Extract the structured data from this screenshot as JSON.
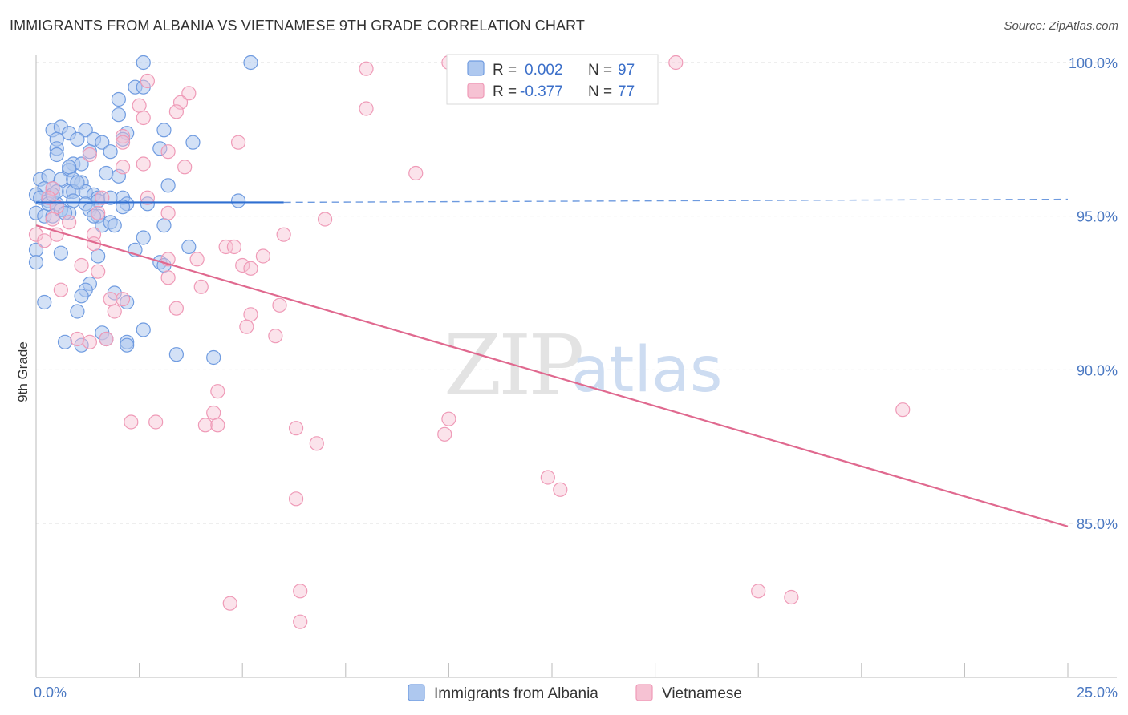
{
  "title": "IMMIGRANTS FROM ALBANIA VS VIETNAMESE 9TH GRADE CORRELATION CHART",
  "source": "Source: ZipAtlas.com",
  "watermark": {
    "zip": "ZIP",
    "atlas": "atlas"
  },
  "colors": {
    "blue_fill": "#aec8ef",
    "blue_stroke": "#6f9be0",
    "blue_line": "#2f6fd1",
    "pink_fill": "#f6c2d3",
    "pink_stroke": "#ef9ab7",
    "pink_line": "#e0698f",
    "grid": "#dddddd",
    "axis_label": "#4a78c2"
  },
  "legend": {
    "rows": [
      {
        "r_label": "R =",
        "r_value": "0.002",
        "n_label": "N =",
        "n_value": "97"
      },
      {
        "r_label": "R =",
        "r_value": "-0.377",
        "n_label": "N =",
        "n_value": "77"
      }
    ]
  },
  "bottom_legend": [
    "Immigrants from Albania",
    "Vietnamese"
  ],
  "chart_data": {
    "type": "scatter",
    "title": "IMMIGRANTS FROM ALBANIA VS VIETNAMESE 9TH GRADE CORRELATION CHART",
    "xlabel": "",
    "ylabel": "9th Grade",
    "xlim": [
      0,
      25
    ],
    "ylim": [
      80.1,
      100.5
    ],
    "x_tick_labels": [
      "0.0%",
      "25.0%"
    ],
    "y_ticks": [
      85,
      90,
      95,
      100
    ],
    "y_tick_labels": [
      "85.0%",
      "90.0%",
      "95.0%",
      "100.0%"
    ],
    "grid": true,
    "legend_position": "top-center",
    "series": [
      {
        "name": "Immigrants from Albania",
        "r": 0.002,
        "n": 97,
        "trend": {
          "x": [
            0,
            6.0
          ],
          "y": [
            95.45,
            95.45
          ],
          "dashed_to": [
            25,
            95.55
          ]
        },
        "points": [
          [
            2.6,
            100.0
          ],
          [
            5.2,
            100.0
          ],
          [
            2.4,
            99.2
          ],
          [
            2.6,
            99.2
          ],
          [
            2.0,
            98.8
          ],
          [
            2.0,
            98.3
          ],
          [
            0.4,
            97.8
          ],
          [
            0.6,
            97.9
          ],
          [
            1.2,
            97.8
          ],
          [
            0.8,
            97.7
          ],
          [
            2.2,
            97.7
          ],
          [
            3.1,
            97.8
          ],
          [
            0.5,
            97.5
          ],
          [
            1.0,
            97.5
          ],
          [
            1.4,
            97.5
          ],
          [
            1.6,
            97.4
          ],
          [
            2.1,
            97.5
          ],
          [
            3.8,
            97.4
          ],
          [
            0.5,
            97.2
          ],
          [
            1.3,
            97.1
          ],
          [
            1.8,
            97.1
          ],
          [
            3.0,
            97.2
          ],
          [
            0.5,
            97.0
          ],
          [
            0.9,
            96.7
          ],
          [
            1.1,
            96.7
          ],
          [
            0.8,
            96.5
          ],
          [
            0.1,
            96.2
          ],
          [
            0.3,
            96.3
          ],
          [
            0.6,
            96.2
          ],
          [
            0.9,
            96.2
          ],
          [
            1.1,
            96.1
          ],
          [
            1.7,
            96.4
          ],
          [
            2.0,
            96.3
          ],
          [
            0.2,
            95.9
          ],
          [
            0.4,
            95.9
          ],
          [
            0.5,
            95.8
          ],
          [
            0.8,
            95.8
          ],
          [
            0.9,
            95.8
          ],
          [
            1.2,
            95.8
          ],
          [
            1.4,
            95.7
          ],
          [
            1.5,
            95.6
          ],
          [
            1.8,
            95.6
          ],
          [
            2.1,
            95.6
          ],
          [
            3.2,
            96.0
          ],
          [
            0.0,
            95.7
          ],
          [
            0.1,
            95.6
          ],
          [
            0.3,
            95.5
          ],
          [
            0.5,
            95.4
          ],
          [
            0.9,
            95.5
          ],
          [
            1.2,
            95.4
          ],
          [
            1.5,
            95.5
          ],
          [
            2.2,
            95.4
          ],
          [
            2.7,
            95.4
          ],
          [
            0.0,
            95.1
          ],
          [
            0.2,
            95.0
          ],
          [
            0.4,
            95.0
          ],
          [
            0.8,
            95.1
          ],
          [
            1.3,
            95.2
          ],
          [
            1.5,
            95.0
          ],
          [
            1.6,
            94.7
          ],
          [
            1.8,
            94.8
          ],
          [
            1.9,
            94.7
          ],
          [
            3.1,
            94.7
          ],
          [
            2.6,
            94.3
          ],
          [
            3.7,
            94.0
          ],
          [
            0.0,
            93.9
          ],
          [
            0.6,
            93.8
          ],
          [
            1.5,
            93.7
          ],
          [
            2.4,
            93.9
          ],
          [
            3.0,
            93.5
          ],
          [
            3.1,
            93.4
          ],
          [
            0.0,
            93.5
          ],
          [
            1.3,
            92.8
          ],
          [
            1.2,
            92.6
          ],
          [
            1.1,
            92.4
          ],
          [
            1.9,
            92.5
          ],
          [
            0.2,
            92.2
          ],
          [
            2.2,
            92.2
          ],
          [
            1.0,
            91.9
          ],
          [
            1.6,
            91.2
          ],
          [
            2.6,
            91.3
          ],
          [
            1.7,
            91.0
          ],
          [
            0.7,
            90.9
          ],
          [
            1.1,
            90.8
          ],
          [
            2.2,
            90.9
          ],
          [
            2.2,
            90.8
          ],
          [
            3.4,
            90.5
          ],
          [
            4.3,
            90.4
          ],
          [
            4.9,
            95.5
          ],
          [
            2.1,
            95.3
          ],
          [
            0.3,
            95.4
          ],
          [
            0.6,
            95.2
          ],
          [
            1.4,
            95.0
          ],
          [
            0.8,
            96.6
          ],
          [
            1.0,
            96.1
          ],
          [
            0.4,
            95.7
          ],
          [
            0.7,
            95.1
          ]
        ]
      },
      {
        "name": "Vietnamese",
        "r": -0.377,
        "n": 77,
        "trend": {
          "x": [
            0,
            25
          ],
          "y": [
            94.7,
            84.9
          ]
        },
        "points": [
          [
            10.0,
            100.0
          ],
          [
            15.5,
            100.0
          ],
          [
            8.0,
            99.8
          ],
          [
            2.7,
            99.4
          ],
          [
            3.7,
            99.0
          ],
          [
            3.5,
            98.7
          ],
          [
            2.5,
            98.6
          ],
          [
            3.4,
            98.4
          ],
          [
            8.0,
            98.5
          ],
          [
            2.6,
            98.2
          ],
          [
            2.1,
            97.6
          ],
          [
            2.1,
            97.4
          ],
          [
            4.9,
            97.4
          ],
          [
            3.2,
            97.1
          ],
          [
            1.3,
            97.0
          ],
          [
            2.6,
            96.7
          ],
          [
            3.6,
            96.6
          ],
          [
            2.1,
            96.6
          ],
          [
            9.2,
            96.4
          ],
          [
            0.4,
            95.9
          ],
          [
            1.6,
            95.6
          ],
          [
            2.7,
            95.6
          ],
          [
            0.5,
            95.3
          ],
          [
            3.2,
            95.1
          ],
          [
            7.0,
            94.9
          ],
          [
            0.0,
            94.4
          ],
          [
            0.5,
            94.4
          ],
          [
            1.4,
            94.4
          ],
          [
            6.0,
            94.4
          ],
          [
            0.2,
            94.2
          ],
          [
            1.4,
            94.1
          ],
          [
            4.6,
            94.0
          ],
          [
            4.8,
            94.0
          ],
          [
            3.2,
            93.6
          ],
          [
            3.9,
            93.6
          ],
          [
            5.0,
            93.4
          ],
          [
            5.5,
            93.7
          ],
          [
            1.1,
            93.4
          ],
          [
            1.5,
            93.2
          ],
          [
            5.2,
            93.3
          ],
          [
            3.2,
            93.0
          ],
          [
            4.0,
            92.7
          ],
          [
            0.6,
            92.6
          ],
          [
            1.8,
            92.3
          ],
          [
            2.1,
            92.3
          ],
          [
            5.9,
            92.1
          ],
          [
            3.4,
            92.0
          ],
          [
            1.9,
            91.9
          ],
          [
            5.2,
            91.8
          ],
          [
            5.1,
            91.4
          ],
          [
            5.8,
            91.1
          ],
          [
            1.0,
            91.0
          ],
          [
            1.7,
            91.0
          ],
          [
            1.3,
            90.9
          ],
          [
            4.4,
            89.3
          ],
          [
            4.3,
            88.6
          ],
          [
            4.1,
            88.2
          ],
          [
            4.4,
            88.2
          ],
          [
            2.3,
            88.3
          ],
          [
            2.9,
            88.3
          ],
          [
            6.3,
            88.1
          ],
          [
            10.0,
            88.4
          ],
          [
            9.9,
            87.9
          ],
          [
            6.8,
            87.6
          ],
          [
            12.4,
            86.5
          ],
          [
            12.7,
            86.1
          ],
          [
            6.3,
            85.8
          ],
          [
            21.0,
            88.7
          ],
          [
            6.4,
            82.8
          ],
          [
            4.7,
            82.4
          ],
          [
            17.5,
            82.8
          ],
          [
            18.3,
            82.6
          ],
          [
            6.4,
            81.8
          ],
          [
            0.4,
            94.9
          ],
          [
            0.8,
            94.8
          ],
          [
            0.3,
            95.6
          ],
          [
            1.5,
            95.1
          ]
        ]
      }
    ]
  }
}
